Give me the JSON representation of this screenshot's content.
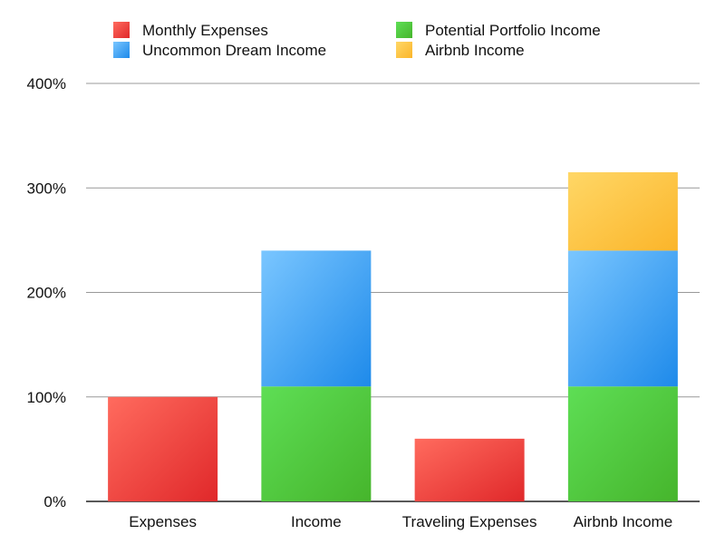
{
  "chart_data": {
    "type": "bar",
    "stacked": true,
    "title": "",
    "xlabel": "",
    "ylabel": "",
    "ylim": [
      0,
      400
    ],
    "yticks": [
      0,
      100,
      200,
      300,
      400
    ],
    "ytick_labels": [
      "0%",
      "100%",
      "200%",
      "300%",
      "400%"
    ],
    "grid": true,
    "legend_position": "top",
    "categories": [
      "Expenses",
      "Income",
      "Traveling Expenses",
      "Airbnb Income"
    ],
    "series": [
      {
        "name": "Monthly Expenses",
        "color": "#e8403a",
        "values": [
          100,
          0,
          60,
          0
        ]
      },
      {
        "name": "Potential Portfolio Income",
        "color": "#4cc43a",
        "values": [
          0,
          110,
          0,
          110
        ]
      },
      {
        "name": "Uncommon Dream Income",
        "color": "#3aa0f0",
        "values": [
          0,
          130,
          0,
          130
        ]
      },
      {
        "name": "Airbnb Income",
        "color": "#fcc33a",
        "values": [
          0,
          0,
          0,
          75
        ]
      }
    ]
  }
}
